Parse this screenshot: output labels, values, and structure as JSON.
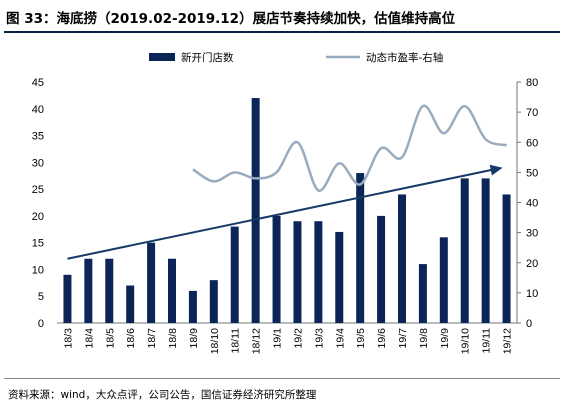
{
  "header": {
    "title": "图 33：海底捞（2019.02-2019.12）展店节奏持续加快，估值维持高位"
  },
  "footer": {
    "source": "资料来源：wind，大众点评，公司公告，国信证券经济研究所整理"
  },
  "chart_data": {
    "type": "bar",
    "categories": [
      "18/3",
      "18/4",
      "18/5",
      "18/6",
      "18/7",
      "18/8",
      "18/9",
      "18/10",
      "18/11",
      "18/12",
      "19/1",
      "19/2",
      "19/3",
      "19/4",
      "19/5",
      "19/6",
      "19/7",
      "19/8",
      "19/9",
      "19/10",
      "19/11",
      "19/12"
    ],
    "series": [
      {
        "name": "新开门店数",
        "type": "bar",
        "axis": "left",
        "color": "#0b2656",
        "values": [
          9,
          12,
          12,
          7,
          15,
          12,
          6,
          8,
          18,
          42,
          20,
          19,
          19,
          17,
          28,
          20,
          24,
          11,
          16,
          27,
          27,
          24
        ]
      },
      {
        "name": "动态市盈率-右轴",
        "type": "line",
        "axis": "right",
        "color": "#9aabbd",
        "x": [
          "18/9",
          "18/10",
          "18/11",
          "18/12",
          "19/1",
          "19/2",
          "19/3",
          "19/4",
          "19/5",
          "19/6",
          "19/7",
          "19/8",
          "19/9",
          "19/10",
          "19/11",
          "19/12"
        ],
        "values": [
          51,
          47,
          50,
          48,
          50,
          60,
          44,
          53,
          46,
          58,
          55,
          72,
          63,
          72,
          61,
          59
        ]
      }
    ],
    "trend_arrow": {
      "from": {
        "category": "18/3",
        "value": 12
      },
      "to": {
        "category": "19/12",
        "value": 29
      }
    },
    "left_axis": {
      "ylim": [
        0,
        45
      ],
      "ticks": [
        "0",
        "5",
        "10",
        "15",
        "20",
        "25",
        "30",
        "35",
        "40",
        "45"
      ]
    },
    "right_axis": {
      "ylim": [
        0,
        80
      ],
      "ticks": [
        "0",
        "10",
        "20",
        "30",
        "40",
        "50",
        "60",
        "70",
        "80"
      ]
    },
    "legend": {
      "position": "top"
    },
    "grid": false
  }
}
